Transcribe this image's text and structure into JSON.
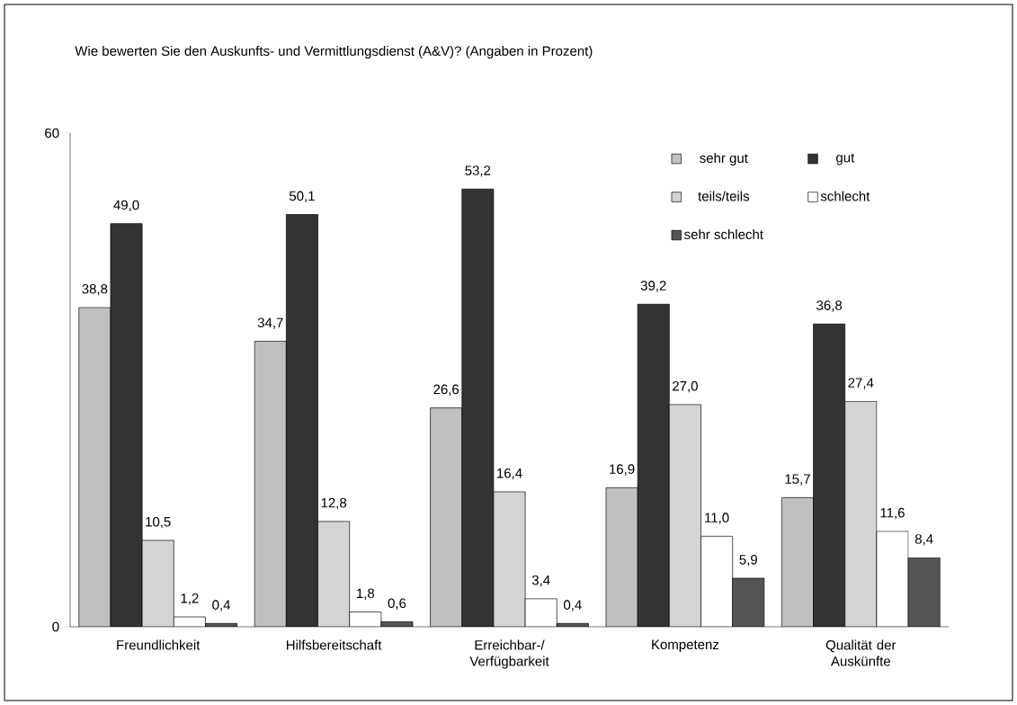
{
  "chart_data": {
    "type": "bar",
    "title": "Wie bewerten Sie den Auskunfts- und Vermittlungsdienst (A&V)? (Angaben in Prozent)",
    "categories": [
      "Freundlichkeit",
      "Hilfsbereitschaft",
      "Erreichbar-/ Verfügbarkeit",
      "Kompetenz",
      "Qualität der Auskünfte"
    ],
    "series": [
      {
        "name": "sehr gut",
        "color": "#c0c0c0",
        "values": [
          38.8,
          34.7,
          26.6,
          16.9,
          15.7
        ],
        "value_labels": [
          "38,8",
          "34,7",
          "26,6",
          "16,9",
          "15,7"
        ]
      },
      {
        "name": "gut",
        "color": "#333333",
        "values": [
          49.0,
          50.1,
          53.2,
          39.2,
          36.8
        ],
        "value_labels": [
          "49,0",
          "50,1",
          "53,2",
          "39,2",
          "36,8"
        ]
      },
      {
        "name": "teils/teils",
        "color": "#d4d4d4",
        "values": [
          10.5,
          12.8,
          16.4,
          27.0,
          27.4
        ],
        "value_labels": [
          "10,5",
          "12,8",
          "16,4",
          "27,0",
          "27,4"
        ]
      },
      {
        "name": "schlecht",
        "color": "#ffffff",
        "values": [
          1.2,
          1.8,
          3.4,
          11.0,
          11.6
        ],
        "value_labels": [
          "1,2",
          "1,8",
          "3,4",
          "11,0",
          "11,6"
        ]
      },
      {
        "name": "sehr schlecht",
        "color": "#555555",
        "values": [
          0.4,
          0.6,
          0.4,
          5.9,
          8.4
        ],
        "value_labels": [
          "0,4",
          "0,6",
          "0,4",
          "5,9",
          "8,4"
        ]
      }
    ],
    "ylim": [
      0,
      60
    ],
    "yticks": [
      0,
      60
    ],
    "legend": "top right",
    "grid": false
  }
}
